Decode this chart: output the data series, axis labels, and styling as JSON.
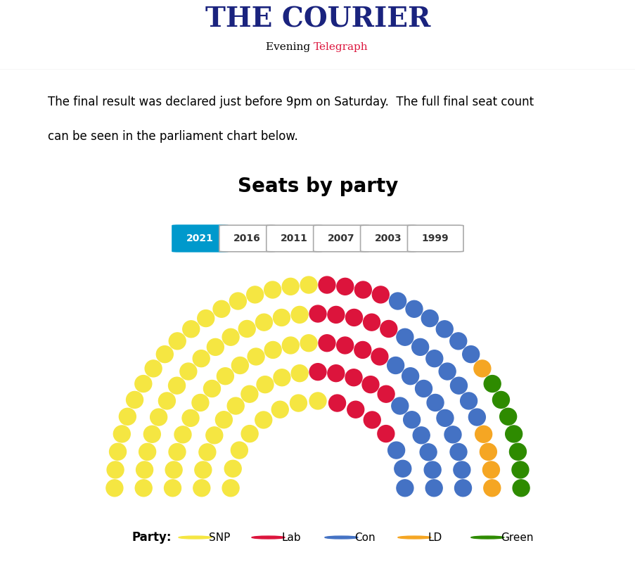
{
  "title": "Seats by party",
  "years": [
    "2021",
    "2016",
    "2011",
    "2007",
    "2003",
    "1999"
  ],
  "active_year": "2021",
  "parties": {
    "SNP": {
      "seats": 64,
      "color": "#F5E642"
    },
    "Lab": {
      "seats": 22,
      "color": "#DC143C"
    },
    "Con": {
      "seats": 31,
      "color": "#4472C4"
    },
    "LD": {
      "seats": 5,
      "color": "#F5A623"
    },
    "Green": {
      "seats": 7,
      "color": "#2E8B00"
    }
  },
  "party_order": [
    "SNP",
    "Lab",
    "Con",
    "LD",
    "Green"
  ],
  "total_seats": 129,
  "n_rows": 5,
  "r_min": 1.5,
  "r_max": 3.5,
  "background_color": "#FFFFFF",
  "header_courier": "THE COURIER",
  "header_sub_plain": "Evening ",
  "header_sub_red": "Telegraph",
  "body_text_line1": "The final result was declared just before 9pm on Saturday.  The full final seat count",
  "body_text_line2": "can be seen in the parliament chart below.",
  "legend_label": "Party:",
  "active_year_bg": "#0099CC",
  "active_year_fg": "#FFFFFF",
  "inactive_year_fg": "#333333"
}
